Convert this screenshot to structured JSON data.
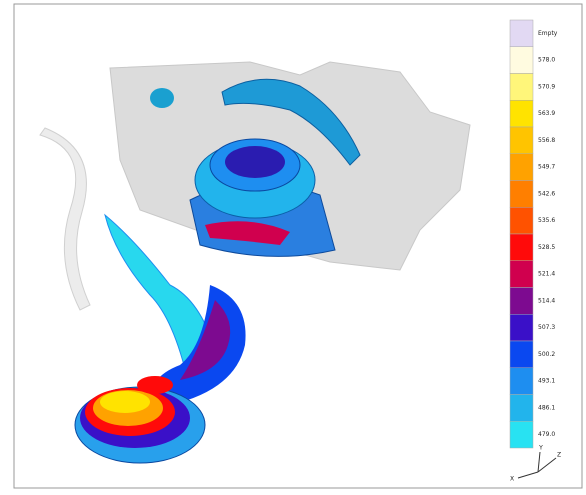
{
  "legend": {
    "entries": [
      {
        "label": "Empty",
        "color": "#e2d9f3"
      },
      {
        "label": "578.0",
        "color": "#fffbe0"
      },
      {
        "label": "570.9",
        "color": "#fff67a"
      },
      {
        "label": "563.9",
        "color": "#ffe300"
      },
      {
        "label": "556.8",
        "color": "#ffc400"
      },
      {
        "label": "549.7",
        "color": "#ffa200"
      },
      {
        "label": "542.6",
        "color": "#ff7f00"
      },
      {
        "label": "535.6",
        "color": "#ff5200"
      },
      {
        "label": "528.5",
        "color": "#ff0a0a"
      },
      {
        "label": "521.4",
        "color": "#d0004e"
      },
      {
        "label": "514.4",
        "color": "#7d0a90"
      },
      {
        "label": "507.3",
        "color": "#3a10c8"
      },
      {
        "label": "500.2",
        "color": "#0a48f0"
      },
      {
        "label": "493.1",
        "color": "#1e8ef0"
      },
      {
        "label": "486.1",
        "color": "#22b4ec"
      },
      {
        "label": "479.0",
        "color": "#28e2f2"
      }
    ]
  },
  "triad": {
    "labels": [
      "X",
      "Y",
      "Z"
    ]
  }
}
